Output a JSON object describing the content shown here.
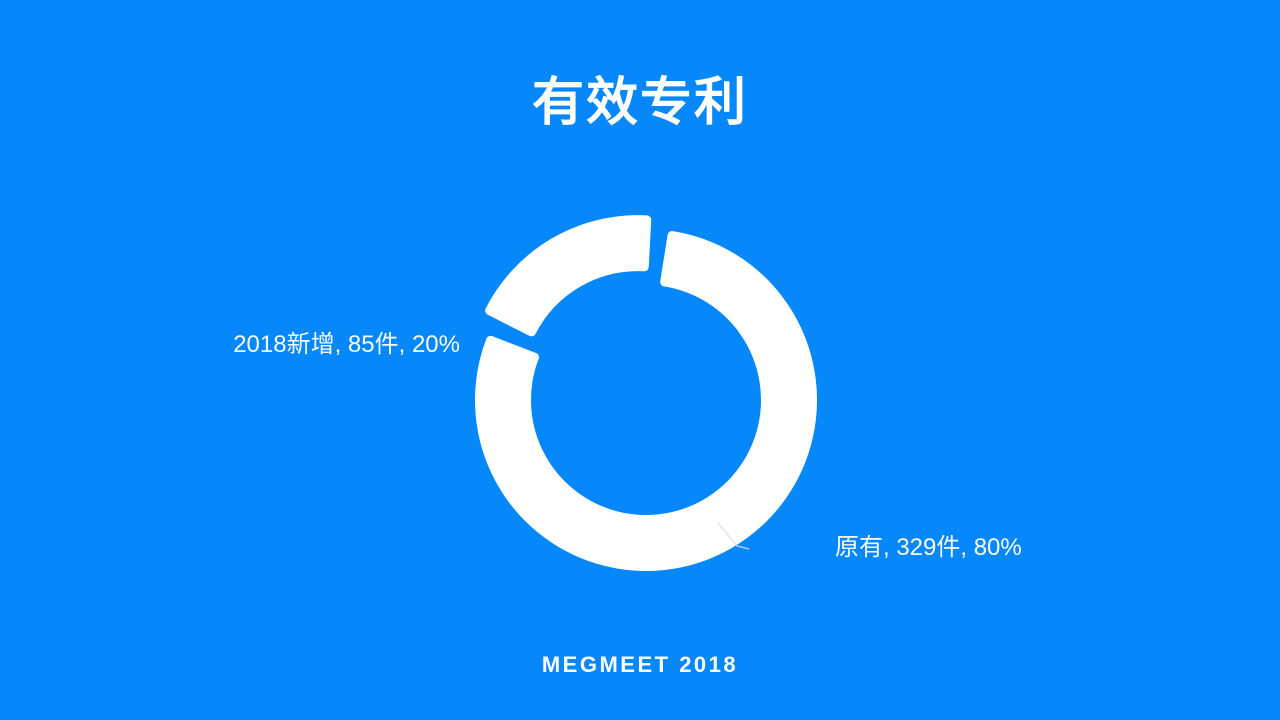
{
  "slide": {
    "title": "有效专利",
    "footer": "MEGMEET 2018",
    "background_color": "#0688fa",
    "text_color": "#ffffff"
  },
  "chart_data": {
    "type": "pie",
    "subtype": "doughnut",
    "title": "有效专利",
    "legend": "none",
    "labels_position": "outside",
    "rotation_deg": 6,
    "hole_ratio": 0.67,
    "slice_color": "#ffffff",
    "leader_line_color": "#d9dde3",
    "categories": [
      "原有",
      "2018新增"
    ],
    "values": [
      329,
      85
    ],
    "percents": [
      80,
      20
    ],
    "unit": "件",
    "slices": [
      {
        "label": "原有",
        "value": 329,
        "unit": "件",
        "percent": 80,
        "data_label": "原有, 329件, 80%",
        "exploded": false
      },
      {
        "label": "2018新增",
        "value": 85,
        "unit": "件",
        "percent": 20,
        "data_label": "2018新增, 85件, 20%",
        "exploded": true
      }
    ]
  }
}
